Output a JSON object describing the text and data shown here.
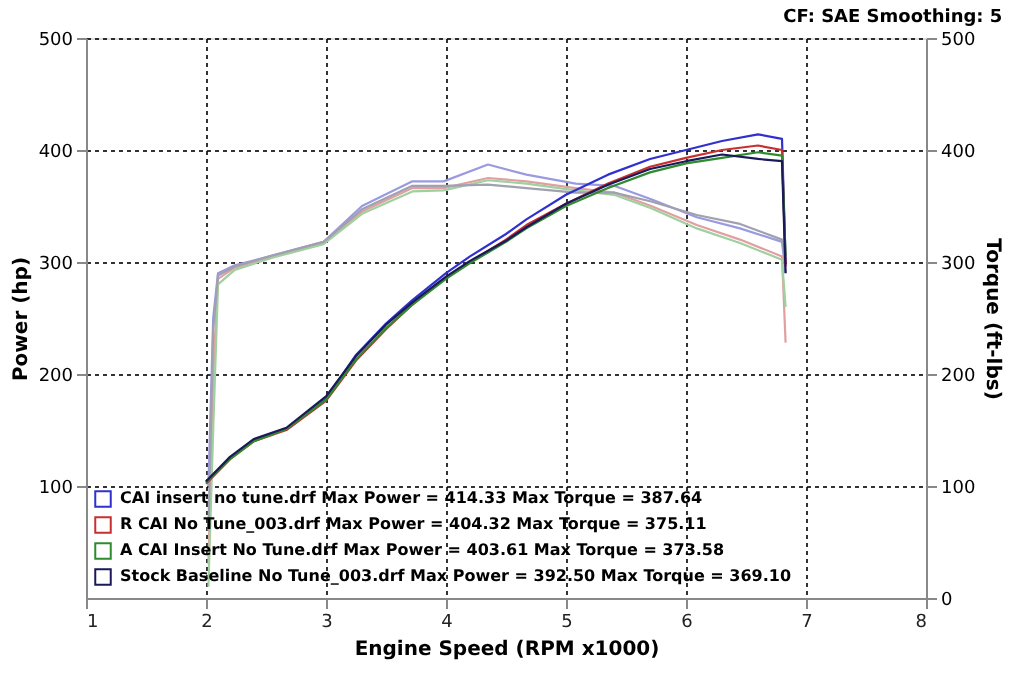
{
  "chart_data": {
    "type": "line",
    "xlabel": "Engine Speed (RPM x1000)",
    "ylabel": "Power (hp)",
    "y2label": "Torque (ft-lbs)",
    "annotations": [
      "CF: SAE  Smoothing: 5"
    ],
    "xlim": [
      1,
      8
    ],
    "xticks": [
      1,
      2,
      3,
      4,
      5,
      6,
      7,
      8
    ],
    "ylim": [
      0,
      500
    ],
    "yticks": [
      100,
      200,
      300,
      400,
      500
    ],
    "y2lim": [
      0,
      500
    ],
    "y2ticks": [
      0,
      100,
      200,
      300,
      400,
      500
    ],
    "grid": true,
    "legend": "bottom left",
    "line_style": "solid",
    "marker": "none",
    "series": [
      {
        "name": "CAI insert no tune.drf Max Power = 414.33     Max Torque = 387.64",
        "color": "#3030d0",
        "x": [
          2.0,
          2.2,
          2.4,
          2.67,
          3.0,
          3.25,
          3.5,
          3.72,
          4.0,
          4.2,
          4.5,
          4.67,
          5.0,
          5.35,
          5.7,
          6.0,
          6.3,
          6.6,
          6.8,
          6.83
        ],
        "values": [
          104,
          125,
          141,
          151,
          178,
          217,
          245,
          266,
          290,
          305,
          325,
          338,
          360,
          378,
          392,
          400,
          408,
          414,
          410,
          300
        ]
      },
      {
        "name": "R CAI No Tune_003.drf Max Power = 404.32     Max Torque = 375.11",
        "color": "#c83030",
        "x": [
          2.0,
          2.2,
          2.4,
          2.67,
          3.0,
          3.25,
          3.5,
          3.72,
          4.0,
          4.2,
          4.5,
          4.67,
          5.0,
          5.35,
          5.7,
          6.0,
          6.3,
          6.6,
          6.8,
          6.83
        ],
        "values": [
          102,
          124,
          140,
          150,
          176,
          212,
          240,
          262,
          286,
          300,
          320,
          333,
          352,
          370,
          385,
          393,
          400,
          404,
          400,
          296
        ]
      },
      {
        "name": "A CAI Insert No Tune.drf Max Power = 403.61     Max Torque = 373.58",
        "color": "#2e8b2e",
        "x": [
          2.0,
          2.2,
          2.4,
          2.67,
          3.0,
          3.25,
          3.5,
          3.72,
          4.0,
          4.2,
          4.5,
          4.67,
          5.0,
          5.35,
          5.7,
          6.0,
          6.3,
          6.6,
          6.8,
          6.83
        ],
        "values": [
          103,
          124,
          140,
          151,
          177,
          213,
          241,
          262,
          285,
          299,
          318,
          330,
          350,
          366,
          380,
          388,
          393,
          398,
          395,
          305
        ]
      },
      {
        "name": "Stock Baseline No Tune_003.drf Max Power = 392.50     Max Torque = 369.10",
        "color": "#1a1a5a",
        "x": [
          2.0,
          2.2,
          2.4,
          2.67,
          3.0,
          3.25,
          3.5,
          3.72,
          4.0,
          4.2,
          4.5,
          4.67,
          5.0,
          5.35,
          5.7,
          6.0,
          6.3,
          6.6,
          6.8,
          6.83
        ],
        "values": [
          104,
          126,
          142,
          152,
          180,
          216,
          244,
          264,
          287,
          301,
          319,
          331,
          352,
          369,
          383,
          390,
          396,
          392,
          390,
          290
        ]
      },
      {
        "color": "#9a9ae0",
        "axis": "y2",
        "x": [
          2.02,
          2.06,
          2.1,
          2.24,
          2.56,
          2.98,
          3.3,
          3.72,
          3.98,
          4.35,
          4.67,
          5.08,
          5.4,
          5.71,
          6.09,
          6.45,
          6.8,
          6.83
        ],
        "values": [
          100,
          250,
          290,
          297,
          306,
          318,
          350,
          372,
          372,
          387,
          378,
          370,
          368,
          356,
          340,
          330,
          318,
          290
        ]
      },
      {
        "color": "#e0a0a0",
        "axis": "y2",
        "x": [
          2.02,
          2.06,
          2.1,
          2.24,
          2.56,
          2.98,
          3.3,
          3.72,
          3.98,
          4.35,
          4.67,
          5.08,
          5.4,
          5.71,
          6.09,
          6.45,
          6.8,
          6.83
        ],
        "values": [
          30,
          200,
          285,
          295,
          305,
          317,
          345,
          366,
          366,
          375,
          372,
          366,
          362,
          350,
          333,
          320,
          305,
          228
        ]
      },
      {
        "color": "#a0d0a0",
        "axis": "y2",
        "x": [
          2.02,
          2.06,
          2.1,
          2.24,
          2.56,
          2.98,
          3.3,
          3.72,
          3.98,
          4.35,
          4.67,
          5.08,
          5.4,
          5.71,
          6.09,
          6.45,
          6.8,
          6.83
        ],
        "values": [
          10,
          150,
          280,
          293,
          304,
          316,
          343,
          363,
          364,
          373,
          370,
          364,
          360,
          348,
          330,
          317,
          302,
          260
        ]
      },
      {
        "color": "#a0a0b0",
        "axis": "y2",
        "x": [
          2.02,
          2.06,
          2.1,
          2.24,
          2.56,
          2.98,
          3.3,
          3.72,
          3.98,
          4.35,
          4.67,
          5.08,
          5.4,
          5.71,
          6.09,
          6.45,
          6.8,
          6.83
        ],
        "values": [
          60,
          240,
          288,
          296,
          306,
          318,
          347,
          368,
          368,
          369,
          366,
          362,
          362,
          354,
          342,
          334,
          320,
          300
        ]
      }
    ]
  }
}
